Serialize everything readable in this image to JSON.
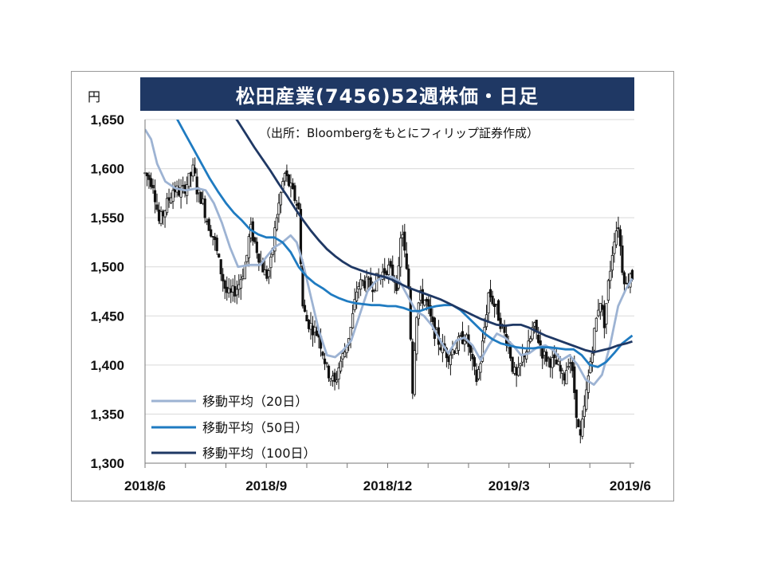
{
  "title": "松田産業(7456)52週株価・日足",
  "source_note": "（出所：Bloombergをもとにフィリップ証券作成）",
  "colors": {
    "title_bg": "#1f3864",
    "ma20": "#9db3d3",
    "ma50": "#1f7bc1",
    "ma100": "#1f3864",
    "candle": "#111111",
    "grid": "#d9d9d9"
  },
  "chart_data": {
    "type": "line",
    "ylabel": "円",
    "ylim": [
      1300,
      1650
    ],
    "yticks": [
      1300,
      1350,
      1400,
      1450,
      1500,
      1550,
      1600,
      1650
    ],
    "ytick_labels": [
      "1,300",
      "1,350",
      "1,400",
      "1,450",
      "1,500",
      "1,550",
      "1,600",
      "1,650"
    ],
    "xlim": [
      0,
      12.1
    ],
    "xticks": [
      0,
      3,
      6,
      9,
      12
    ],
    "xtick_labels": [
      "2018/6",
      "2018/9",
      "2018/12",
      "2019/3",
      "2019/6"
    ],
    "close_path": [
      [
        0.0,
        1595
      ],
      [
        0.2,
        1585
      ],
      [
        0.35,
        1545
      ],
      [
        0.5,
        1560
      ],
      [
        0.7,
        1580
      ],
      [
        0.9,
        1575
      ],
      [
        1.1,
        1590
      ],
      [
        1.2,
        1600
      ],
      [
        1.3,
        1575
      ],
      [
        1.4,
        1570
      ],
      [
        1.55,
        1545
      ],
      [
        1.7,
        1530
      ],
      [
        1.85,
        1500
      ],
      [
        2.0,
        1475
      ],
      [
        2.1,
        1470
      ],
      [
        2.3,
        1480
      ],
      [
        2.5,
        1505
      ],
      [
        2.6,
        1540
      ],
      [
        2.75,
        1520
      ],
      [
        2.9,
        1500
      ],
      [
        3.0,
        1490
      ],
      [
        3.1,
        1500
      ],
      [
        3.25,
        1550
      ],
      [
        3.45,
        1595
      ],
      [
        3.6,
        1580
      ],
      [
        3.8,
        1560
      ],
      [
        3.9,
        1460
      ],
      [
        4.0,
        1445
      ],
      [
        4.1,
        1440
      ],
      [
        4.3,
        1430
      ],
      [
        4.5,
        1395
      ],
      [
        4.7,
        1380
      ],
      [
        4.8,
        1400
      ],
      [
        4.95,
        1415
      ],
      [
        5.1,
        1440
      ],
      [
        5.25,
        1480
      ],
      [
        5.4,
        1485
      ],
      [
        5.6,
        1480
      ],
      [
        5.8,
        1490
      ],
      [
        6.0,
        1500
      ],
      [
        6.15,
        1490
      ],
      [
        6.25,
        1480
      ],
      [
        6.35,
        1545
      ],
      [
        6.45,
        1500
      ],
      [
        6.55,
        1470
      ],
      [
        6.6,
        1360
      ],
      [
        6.7,
        1450
      ],
      [
        6.8,
        1470
      ],
      [
        6.95,
        1465
      ],
      [
        7.1,
        1440
      ],
      [
        7.3,
        1420
      ],
      [
        7.5,
        1410
      ],
      [
        7.7,
        1420
      ],
      [
        7.9,
        1430
      ],
      [
        8.0,
        1420
      ],
      [
        8.1,
        1400
      ],
      [
        8.2,
        1385
      ],
      [
        8.3,
        1405
      ],
      [
        8.5,
        1475
      ],
      [
        8.7,
        1455
      ],
      [
        8.9,
        1430
      ],
      [
        9.0,
        1420
      ],
      [
        9.1,
        1395
      ],
      [
        9.2,
        1385
      ],
      [
        9.35,
        1410
      ],
      [
        9.5,
        1420
      ],
      [
        9.6,
        1440
      ],
      [
        9.7,
        1430
      ],
      [
        9.85,
        1410
      ],
      [
        10.0,
        1405
      ],
      [
        10.2,
        1400
      ],
      [
        10.35,
        1385
      ],
      [
        10.5,
        1410
      ],
      [
        10.6,
        1380
      ],
      [
        10.75,
        1320
      ],
      [
        10.85,
        1350
      ],
      [
        11.0,
        1400
      ],
      [
        11.1,
        1430
      ],
      [
        11.25,
        1470
      ],
      [
        11.35,
        1440
      ],
      [
        11.45,
        1480
      ],
      [
        11.6,
        1530
      ],
      [
        11.7,
        1545
      ],
      [
        11.8,
        1500
      ],
      [
        11.9,
        1480
      ],
      [
        12.0,
        1495
      ],
      [
        12.1,
        1485
      ]
    ],
    "series": [
      {
        "name": "移動平均（20日）",
        "x": [
          0,
          0.15,
          0.3,
          0.5,
          0.75,
          1.0,
          1.3,
          1.5,
          1.7,
          1.9,
          2.1,
          2.3,
          2.6,
          2.85,
          3.0,
          3.2,
          3.4,
          3.6,
          3.75,
          3.9,
          4.1,
          4.3,
          4.5,
          4.7,
          4.9,
          5.1,
          5.3,
          5.5,
          5.7,
          5.9,
          6.1,
          6.3,
          6.5,
          6.7,
          6.9,
          7.1,
          7.3,
          7.5,
          7.7,
          7.9,
          8.1,
          8.3,
          8.5,
          8.7,
          8.9,
          9.1,
          9.3,
          9.5,
          9.7,
          9.9,
          10.1,
          10.3,
          10.5,
          10.7,
          10.9,
          11.1,
          11.3,
          11.5,
          11.7,
          11.9,
          12.05
        ],
        "values": [
          1640,
          1630,
          1605,
          1587,
          1580,
          1578,
          1580,
          1578,
          1565,
          1545,
          1520,
          1500,
          1502,
          1502,
          1510,
          1520,
          1525,
          1532,
          1525,
          1505,
          1470,
          1435,
          1410,
          1408,
          1415,
          1425,
          1450,
          1475,
          1485,
          1490,
          1490,
          1485,
          1470,
          1455,
          1450,
          1440,
          1425,
          1412,
          1425,
          1428,
          1420,
          1405,
          1420,
          1432,
          1428,
          1420,
          1410,
          1412,
          1418,
          1420,
          1415,
          1405,
          1410,
          1400,
          1385,
          1380,
          1390,
          1420,
          1460,
          1478,
          1488
        ]
      },
      {
        "name": "移動平均（50日）",
        "x": [
          0.4,
          0.6,
          0.8,
          1.0,
          1.2,
          1.4,
          1.6,
          1.8,
          2.0,
          2.2,
          2.4,
          2.6,
          2.8,
          3.0,
          3.2,
          3.4,
          3.6,
          3.8,
          4.0,
          4.2,
          4.4,
          4.6,
          4.8,
          5.0,
          5.2,
          5.4,
          5.6,
          5.8,
          6.0,
          6.2,
          6.4,
          6.6,
          6.8,
          7.0,
          7.2,
          7.4,
          7.6,
          7.8,
          8.0,
          8.2,
          8.4,
          8.6,
          8.8,
          9.0,
          9.2,
          9.4,
          9.6,
          9.8,
          10.0,
          10.2,
          10.4,
          10.6,
          10.8,
          11.0,
          11.2,
          11.4,
          11.6,
          11.8,
          12.05
        ],
        "values": [
          1675,
          1665,
          1650,
          1635,
          1620,
          1605,
          1590,
          1577,
          1565,
          1555,
          1547,
          1538,
          1533,
          1530,
          1530,
          1525,
          1515,
          1500,
          1490,
          1483,
          1478,
          1472,
          1468,
          1465,
          1463,
          1462,
          1461,
          1461,
          1460,
          1460,
          1458,
          1455,
          1455,
          1458,
          1460,
          1461,
          1461,
          1456,
          1448,
          1440,
          1432,
          1426,
          1422,
          1420,
          1418,
          1417,
          1417,
          1418,
          1418,
          1417,
          1416,
          1416,
          1410,
          1400,
          1398,
          1403,
          1412,
          1422,
          1430
        ]
      },
      {
        "name": "移動平均（100日）",
        "x": [
          2.1,
          2.3,
          2.5,
          2.7,
          2.9,
          3.1,
          3.3,
          3.5,
          3.7,
          3.9,
          4.1,
          4.3,
          4.5,
          4.7,
          4.9,
          5.1,
          5.3,
          5.5,
          5.7,
          5.9,
          6.1,
          6.3,
          6.5,
          6.7,
          6.9,
          7.1,
          7.3,
          7.5,
          7.7,
          7.9,
          8.1,
          8.3,
          8.5,
          8.7,
          8.9,
          9.1,
          9.3,
          9.5,
          9.7,
          9.9,
          10.1,
          10.3,
          10.5,
          10.7,
          10.9,
          11.1,
          11.3,
          11.5,
          11.7,
          11.9,
          12.05
        ],
        "values": [
          1660,
          1648,
          1635,
          1622,
          1610,
          1598,
          1585,
          1573,
          1560,
          1548,
          1537,
          1527,
          1518,
          1511,
          1505,
          1500,
          1497,
          1494,
          1492,
          1490,
          1487,
          1483,
          1479,
          1476,
          1473,
          1470,
          1467,
          1463,
          1459,
          1455,
          1451,
          1447,
          1444,
          1441,
          1440,
          1441,
          1441,
          1438,
          1434,
          1430,
          1427,
          1424,
          1421,
          1418,
          1415,
          1413,
          1415,
          1417,
          1420,
          1422,
          1424
        ]
      }
    ]
  }
}
